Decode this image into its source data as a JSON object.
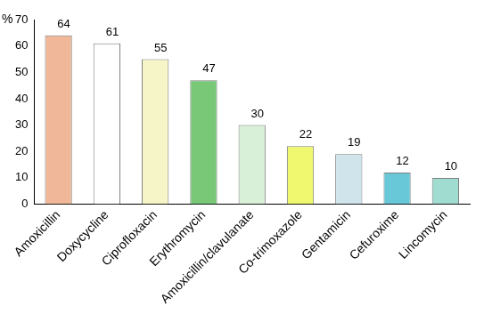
{
  "chart_data": {
    "type": "bar",
    "ylabel": "%",
    "categories": [
      "Amoxicillin",
      "Doxycycline",
      "Ciprofloxacin",
      "Erythromycin",
      "Amoxicillin/clavulanate",
      "Co-trimoxazole",
      "Gentamicin",
      "Cefuroxime",
      "Lincomycin"
    ],
    "values": [
      64,
      61,
      55,
      47,
      30,
      22,
      19,
      12,
      10
    ],
    "colors": [
      "#f0b898",
      "#ffffff",
      "#f5f5c8",
      "#78c878",
      "#d8f0d8",
      "#f0f870",
      "#d0e4ec",
      "#68c8d8",
      "#a0dcd0"
    ],
    "ylim": [
      0,
      70
    ],
    "yticks": [
      0,
      10,
      20,
      30,
      40,
      50,
      60,
      70
    ],
    "grid": false,
    "data_labels": true
  }
}
